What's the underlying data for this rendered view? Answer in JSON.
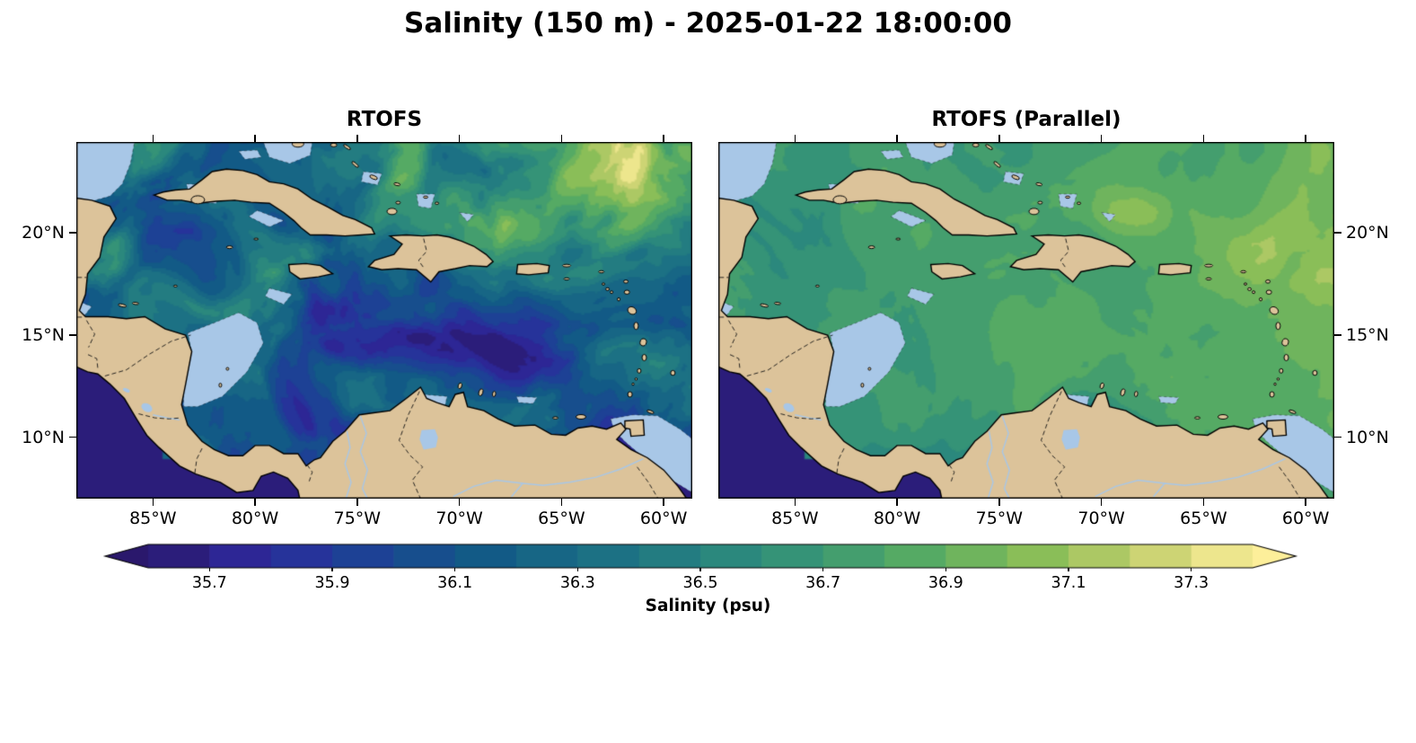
{
  "chart_data": {
    "type": "heatmap",
    "title": "Salinity (150 m) - 2025-01-22 18:00:00",
    "variable": "Salinity",
    "depth_label": "150 m",
    "timestamp": "2025-01-22 18:00:00",
    "panels": [
      {
        "title": "RTOFS",
        "y_labels_side": "left",
        "summary": "Energetic mesoscale eddy field: fresh water (35.6-35.9 psu, dark navy) over the southern and southeastern Caribbean, mixed 36.1-36.6 psu teal/green filaments through the central and western basin, salty 36.9-37.3 psu (yellow-green) water in the northeast Atlantic sector; Pacific corner uniformly fresh (<35.7)."
      },
      {
        "title": "RTOFS (Parallel)",
        "y_labels_side": "right",
        "summary": "Much smoother and saltier field: mostly 36.6-37.0 psu (green) basin-wide, slightly saltier toward the east, with a fresher teal band (~36.3-36.5) along the Venezuelan/Colombian coast and near Trinidad; Pacific corner uniformly fresh (<35.7)."
      }
    ],
    "x_axis": {
      "tick_labels": [
        "85°W",
        "80°W",
        "75°W",
        "70°W",
        "65°W",
        "60°W"
      ],
      "tick_lons": [
        -85,
        -80,
        -75,
        -70,
        -65,
        -60
      ]
    },
    "y_axis": {
      "tick_labels": [
        "20°N",
        "15°N",
        "10°N"
      ],
      "tick_lats": [
        20,
        15,
        10
      ]
    },
    "extent": {
      "lon_min": -88.75,
      "lon_max": -58.6,
      "lat_min": 7.0,
      "lat_max": 24.45
    },
    "colorbar": {
      "label": "Salinity (psu)",
      "tick_labels": [
        "35.7",
        "35.9",
        "36.1",
        "36.3",
        "36.5",
        "36.7",
        "36.9",
        "37.1",
        "37.3"
      ],
      "tick_values": [
        35.7,
        35.9,
        36.1,
        36.3,
        36.5,
        36.7,
        36.9,
        37.1,
        37.3
      ],
      "level_min": 35.6,
      "level_max": 37.4,
      "level_step": 0.1,
      "extend": "both",
      "colormap_name": "haline",
      "colormap_stops": [
        "#2a186c",
        "#2d299d",
        "#1c4294",
        "#125986",
        "#1a6e85",
        "#268280",
        "#389675",
        "#57ab63",
        "#87bd57",
        "#c4cf6d",
        "#fdef9a"
      ]
    },
    "map_colors": {
      "land": "#dcc39a",
      "shallow_water": "#a8c7e7",
      "coastline": "#000000",
      "background": "#ffffff"
    }
  }
}
